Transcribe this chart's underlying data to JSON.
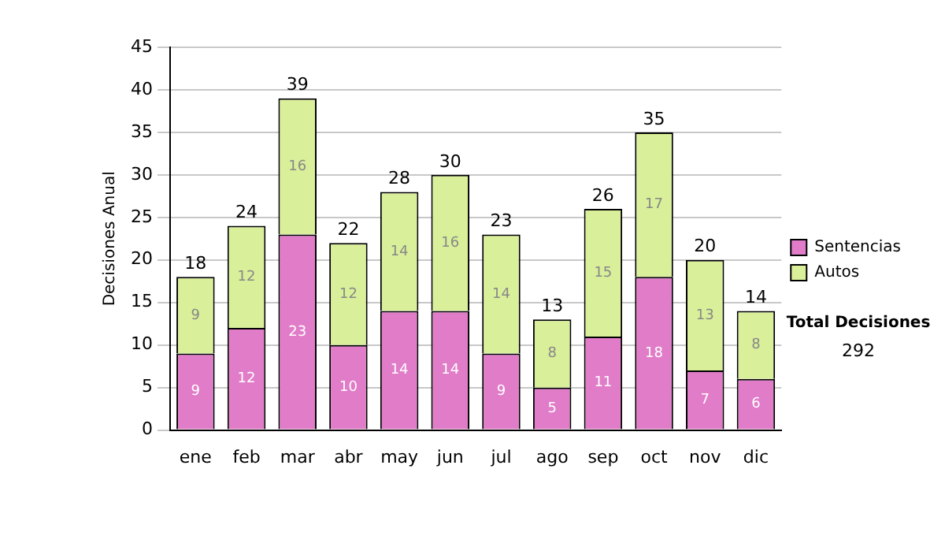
{
  "chart_data": {
    "type": "bar",
    "stacked": true,
    "ylabel": "Decisiones Anual",
    "categories": [
      "ene",
      "feb",
      "mar",
      "abr",
      "may",
      "jun",
      "jul",
      "ago",
      "sep",
      "oct",
      "nov",
      "dic"
    ],
    "series": [
      {
        "name": "Sentencias",
        "color": "#e07cc8",
        "values": [
          9,
          12,
          23,
          10,
          14,
          14,
          9,
          5,
          11,
          18,
          7,
          6
        ]
      },
      {
        "name": "Autos",
        "color": "#d9ef9a",
        "values": [
          9,
          12,
          16,
          12,
          14,
          16,
          14,
          8,
          15,
          17,
          13,
          8
        ]
      }
    ],
    "totals": [
      "18",
      "24",
      "39",
      "22",
      "28",
      "30",
      "23",
      "13",
      "26",
      "35",
      "20",
      "14"
    ],
    "data_labels": true,
    "ylim": [
      0,
      45
    ],
    "yticks": [
      0,
      5,
      10,
      15,
      20,
      25,
      30,
      35,
      40,
      45
    ],
    "grid": "y",
    "legend": "right",
    "annotations": [
      "Total Decisiones",
      "292"
    ]
  }
}
